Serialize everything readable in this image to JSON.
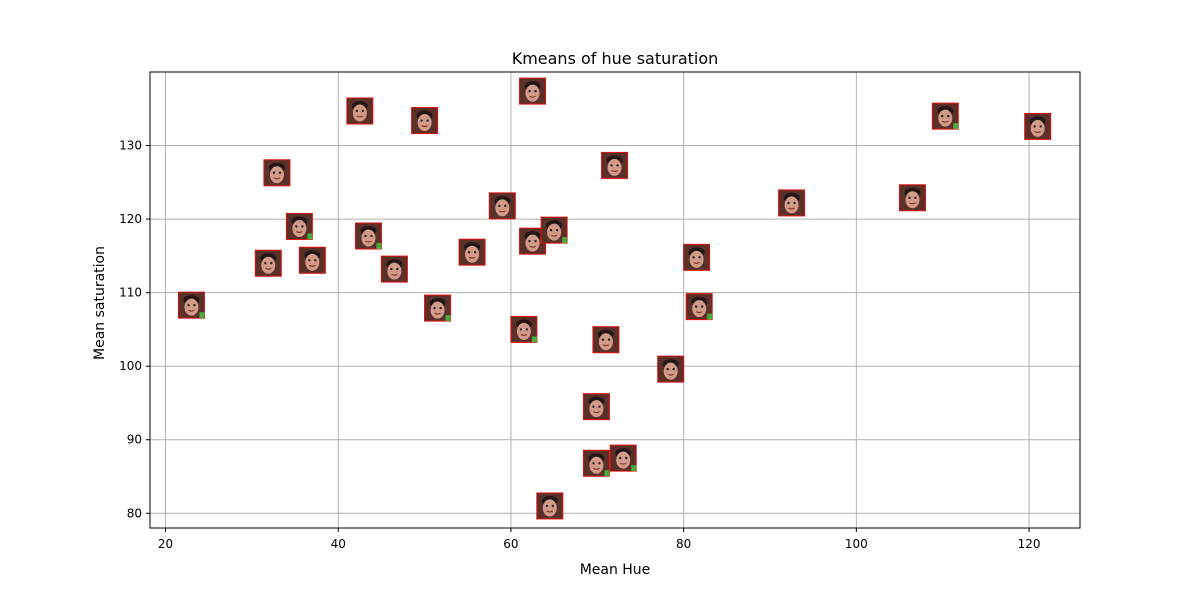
{
  "chart_data": {
    "type": "scatter",
    "title": "Kmeans of hue saturation",
    "xlabel": "Mean Hue",
    "ylabel": "Mean saturation",
    "xlim": [
      18.2,
      125.9
    ],
    "ylim": [
      78.0,
      140.0
    ],
    "xticks": [
      20,
      40,
      60,
      80,
      100,
      120
    ],
    "yticks": [
      80,
      90,
      100,
      110,
      120,
      130
    ],
    "grid": true,
    "marker": "face-thumbnail-image",
    "points": [
      {
        "x": 23.0,
        "y": 108.3
      },
      {
        "x": 31.9,
        "y": 114.0
      },
      {
        "x": 32.9,
        "y": 126.3
      },
      {
        "x": 35.5,
        "y": 119.0
      },
      {
        "x": 37.0,
        "y": 114.4
      },
      {
        "x": 42.5,
        "y": 134.7
      },
      {
        "x": 43.5,
        "y": 117.7
      },
      {
        "x": 46.5,
        "y": 113.2
      },
      {
        "x": 50.0,
        "y": 133.4
      },
      {
        "x": 51.5,
        "y": 107.9
      },
      {
        "x": 55.5,
        "y": 115.5
      },
      {
        "x": 59.0,
        "y": 121.8
      },
      {
        "x": 61.5,
        "y": 105.0
      },
      {
        "x": 62.5,
        "y": 137.4
      },
      {
        "x": 62.5,
        "y": 117.0
      },
      {
        "x": 65.0,
        "y": 118.5
      },
      {
        "x": 64.5,
        "y": 81.0
      },
      {
        "x": 69.9,
        "y": 94.5
      },
      {
        "x": 69.9,
        "y": 86.8
      },
      {
        "x": 71.0,
        "y": 103.6
      },
      {
        "x": 72.0,
        "y": 127.3
      },
      {
        "x": 73.0,
        "y": 87.5
      },
      {
        "x": 78.5,
        "y": 99.6
      },
      {
        "x": 81.5,
        "y": 114.8
      },
      {
        "x": 81.8,
        "y": 108.1
      },
      {
        "x": 92.5,
        "y": 122.2
      },
      {
        "x": 106.5,
        "y": 122.9
      },
      {
        "x": 110.3,
        "y": 134.0
      },
      {
        "x": 121.0,
        "y": 132.6
      }
    ]
  },
  "colors": {
    "background": "#ffffff",
    "grid": "#b0b0b0",
    "axes": "#000000",
    "thumb_border": "#e01010",
    "thumb_bg": "#5a3028",
    "thumb_skin": "#d29a88",
    "thumb_hair": "#241614",
    "thumb_green_fringe": "#44cc44"
  }
}
